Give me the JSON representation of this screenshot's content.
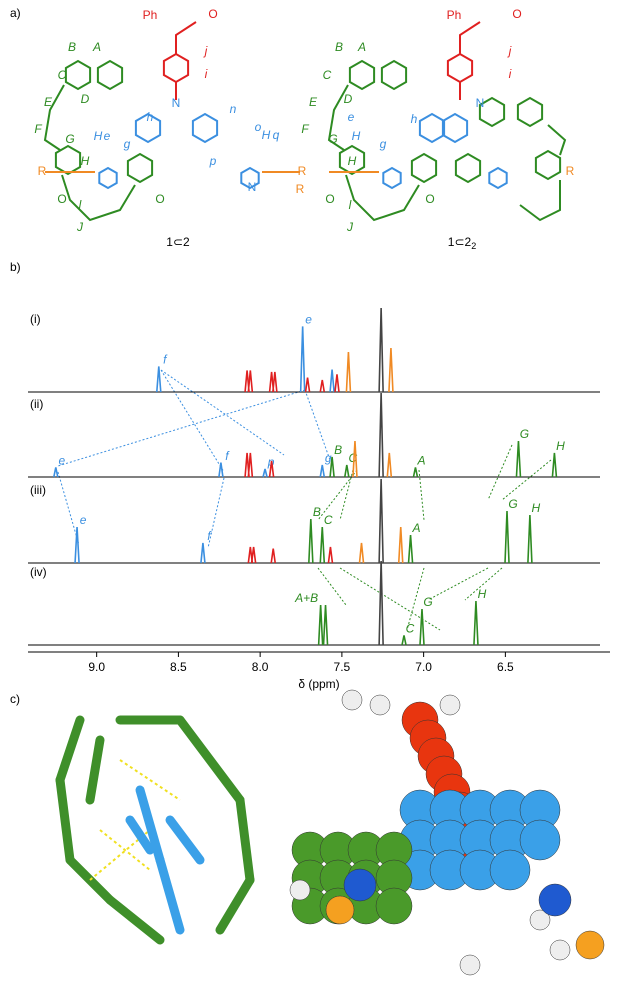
{
  "panel_a": {
    "label": "a)",
    "atom_labels": [
      "Ph",
      "O",
      "j",
      "i",
      "N",
      "n",
      "o",
      "h",
      "g",
      "p",
      "H",
      "e",
      "H",
      "q",
      "N",
      "R",
      "B",
      "A",
      "C",
      "D",
      "E",
      "F",
      "G",
      "H",
      "R",
      "l",
      "J",
      "O",
      "O",
      "Ph",
      "O",
      "j",
      "i",
      "N",
      "B",
      "A",
      "C",
      "D",
      "E",
      "F",
      "G",
      "H",
      "R",
      "e",
      "H",
      "g",
      "h",
      "R",
      "l",
      "J",
      "O",
      "O"
    ],
    "compounds": [
      {
        "name": "1⊂2"
      },
      {
        "name": "1⊂2",
        "subscript": "2"
      }
    ]
  },
  "chart_data": {
    "type": "spectrum",
    "label": "b)",
    "x_label": "δ (ppm)",
    "xlim": [
      9.42,
      5.86
    ],
    "xticks": [
      {
        "value": 9.0,
        "label": "9.0"
      },
      {
        "value": 8.5,
        "label": "8.5"
      },
      {
        "value": 8.0,
        "label": "8.0"
      },
      {
        "value": 7.5,
        "label": "7.5"
      },
      {
        "value": 7.0,
        "label": "7.0"
      },
      {
        "value": 6.5,
        "label": "6.5"
      }
    ],
    "spectra": [
      {
        "label": "(i)",
        "peaks": [
          {
            "x": 8.62,
            "h": 0.32,
            "color": "#3b8fe0",
            "label": "f"
          },
          {
            "x": 8.08,
            "h": 0.27,
            "color": "#e02020"
          },
          {
            "x": 8.06,
            "h": 0.27,
            "color": "#e02020"
          },
          {
            "x": 7.93,
            "h": 0.25,
            "color": "#e02020"
          },
          {
            "x": 7.91,
            "h": 0.25,
            "color": "#e02020"
          },
          {
            "x": 7.74,
            "h": 0.82,
            "color": "#3b8fe0",
            "label": "e"
          },
          {
            "x": 7.71,
            "h": 0.18,
            "color": "#e02020"
          },
          {
            "x": 7.62,
            "h": 0.15,
            "color": "#e02020"
          },
          {
            "x": 7.56,
            "h": 0.28,
            "color": "#3b8fe0"
          },
          {
            "x": 7.53,
            "h": 0.22,
            "color": "#e02020"
          },
          {
            "x": 7.46,
            "h": 0.5,
            "color": "#f08a24"
          },
          {
            "x": 7.26,
            "h": 1.05,
            "color": "#444444"
          },
          {
            "x": 7.2,
            "h": 0.55,
            "color": "#f08a24"
          }
        ]
      },
      {
        "label": "(ii)",
        "peaks": [
          {
            "x": 9.25,
            "h": 0.12,
            "color": "#3b8fe0",
            "label": "e"
          },
          {
            "x": 8.24,
            "h": 0.18,
            "color": "#3b8fe0",
            "label": "f"
          },
          {
            "x": 8.08,
            "h": 0.3,
            "color": "#e02020"
          },
          {
            "x": 8.06,
            "h": 0.3,
            "color": "#e02020"
          },
          {
            "x": 7.97,
            "h": 0.1,
            "color": "#3b8fe0",
            "label": "p"
          },
          {
            "x": 7.93,
            "h": 0.2,
            "color": "#e02020"
          },
          {
            "x": 7.62,
            "h": 0.15,
            "color": "#3b8fe0",
            "label": "g"
          },
          {
            "x": 7.56,
            "h": 0.25,
            "color": "#2e8b22",
            "label": "B"
          },
          {
            "x": 7.47,
            "h": 0.15,
            "color": "#2e8b22",
            "label": "C"
          },
          {
            "x": 7.42,
            "h": 0.45,
            "color": "#f08a24"
          },
          {
            "x": 7.26,
            "h": 1.05,
            "color": "#444444"
          },
          {
            "x": 7.21,
            "h": 0.3,
            "color": "#f08a24"
          },
          {
            "x": 7.05,
            "h": 0.12,
            "color": "#2e8b22",
            "label": "A"
          },
          {
            "x": 6.42,
            "h": 0.45,
            "color": "#2e8b22",
            "label": "G"
          },
          {
            "x": 6.2,
            "h": 0.3,
            "color": "#2e8b22",
            "label": "H"
          }
        ]
      },
      {
        "label": "(iii)",
        "peaks": [
          {
            "x": 9.12,
            "h": 0.45,
            "color": "#3b8fe0",
            "label": "e"
          },
          {
            "x": 8.35,
            "h": 0.25,
            "color": "#3b8fe0",
            "label": "f"
          },
          {
            "x": 8.06,
            "h": 0.2,
            "color": "#e02020"
          },
          {
            "x": 8.04,
            "h": 0.2,
            "color": "#e02020"
          },
          {
            "x": 7.92,
            "h": 0.18,
            "color": "#e02020"
          },
          {
            "x": 7.69,
            "h": 0.55,
            "color": "#2e8b22",
            "label": "B"
          },
          {
            "x": 7.62,
            "h": 0.45,
            "color": "#2e8b22",
            "label": "C"
          },
          {
            "x": 7.57,
            "h": 0.2,
            "color": "#e02020"
          },
          {
            "x": 7.38,
            "h": 0.25,
            "color": "#f08a24"
          },
          {
            "x": 7.26,
            "h": 1.05,
            "color": "#444444"
          },
          {
            "x": 7.14,
            "h": 0.45,
            "color": "#f08a24"
          },
          {
            "x": 7.08,
            "h": 0.35,
            "color": "#2e8b22",
            "label": "A"
          },
          {
            "x": 6.49,
            "h": 0.65,
            "color": "#2e8b22",
            "label": "G"
          },
          {
            "x": 6.35,
            "h": 0.6,
            "color": "#2e8b22",
            "label": "H"
          }
        ]
      },
      {
        "label": "(iv)",
        "peaks": [
          {
            "x": 7.63,
            "h": 0.5,
            "color": "#2e8b22",
            "label": "A+B"
          },
          {
            "x": 7.6,
            "h": 0.5,
            "color": "#2e8b22"
          },
          {
            "x": 7.26,
            "h": 1.05,
            "color": "#444444"
          },
          {
            "x": 7.12,
            "h": 0.12,
            "color": "#2e8b22",
            "label": "C"
          },
          {
            "x": 7.01,
            "h": 0.45,
            "color": "#2e8b22",
            "label": "G"
          },
          {
            "x": 6.68,
            "h": 0.55,
            "color": "#2e8b22",
            "label": "H"
          }
        ]
      }
    ]
  },
  "panel_c": {
    "label": "c)"
  }
}
